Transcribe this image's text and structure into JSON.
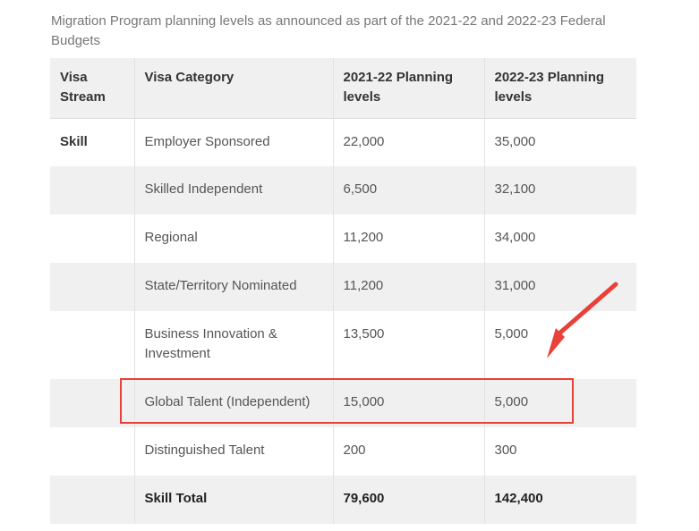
{
  "caption": "Migration Program planning levels as announced as part of the 2021-22 and 2022-23 Federal Budgets",
  "table": {
    "headers": [
      "Visa Stream",
      "Visa Category",
      "2021-22 Planning levels",
      "2022-23 Planning levels"
    ],
    "rows": [
      {
        "stream": "Skill",
        "category": "Employer Sponsored",
        "y2021": "22,000",
        "y2022": "35,000"
      },
      {
        "stream": "",
        "category": "Skilled Independent",
        "y2021": "6,500",
        "y2022": "32,100"
      },
      {
        "stream": "",
        "category": "Regional",
        "y2021": "11,200",
        "y2022": "34,000"
      },
      {
        "stream": "",
        "category": "State/Territory Nominated",
        "y2021": "11,200",
        "y2022": "31,000"
      },
      {
        "stream": "",
        "category": "Business Innovation & Investment",
        "y2021": "13,500",
        "y2022": "5,000"
      },
      {
        "stream": "",
        "category": "Global Talent (Independent)",
        "y2021": "15,000",
        "y2022": "5,000"
      },
      {
        "stream": "",
        "category": "Distinguished Talent",
        "y2021": "200",
        "y2022": "300"
      },
      {
        "stream": "",
        "category": "Skill Total",
        "y2021": "79,600",
        "y2022": "142,400"
      }
    ]
  },
  "annotation": {
    "highlighted_row": "Global Talent (Independent)",
    "color": "#e8413a"
  }
}
